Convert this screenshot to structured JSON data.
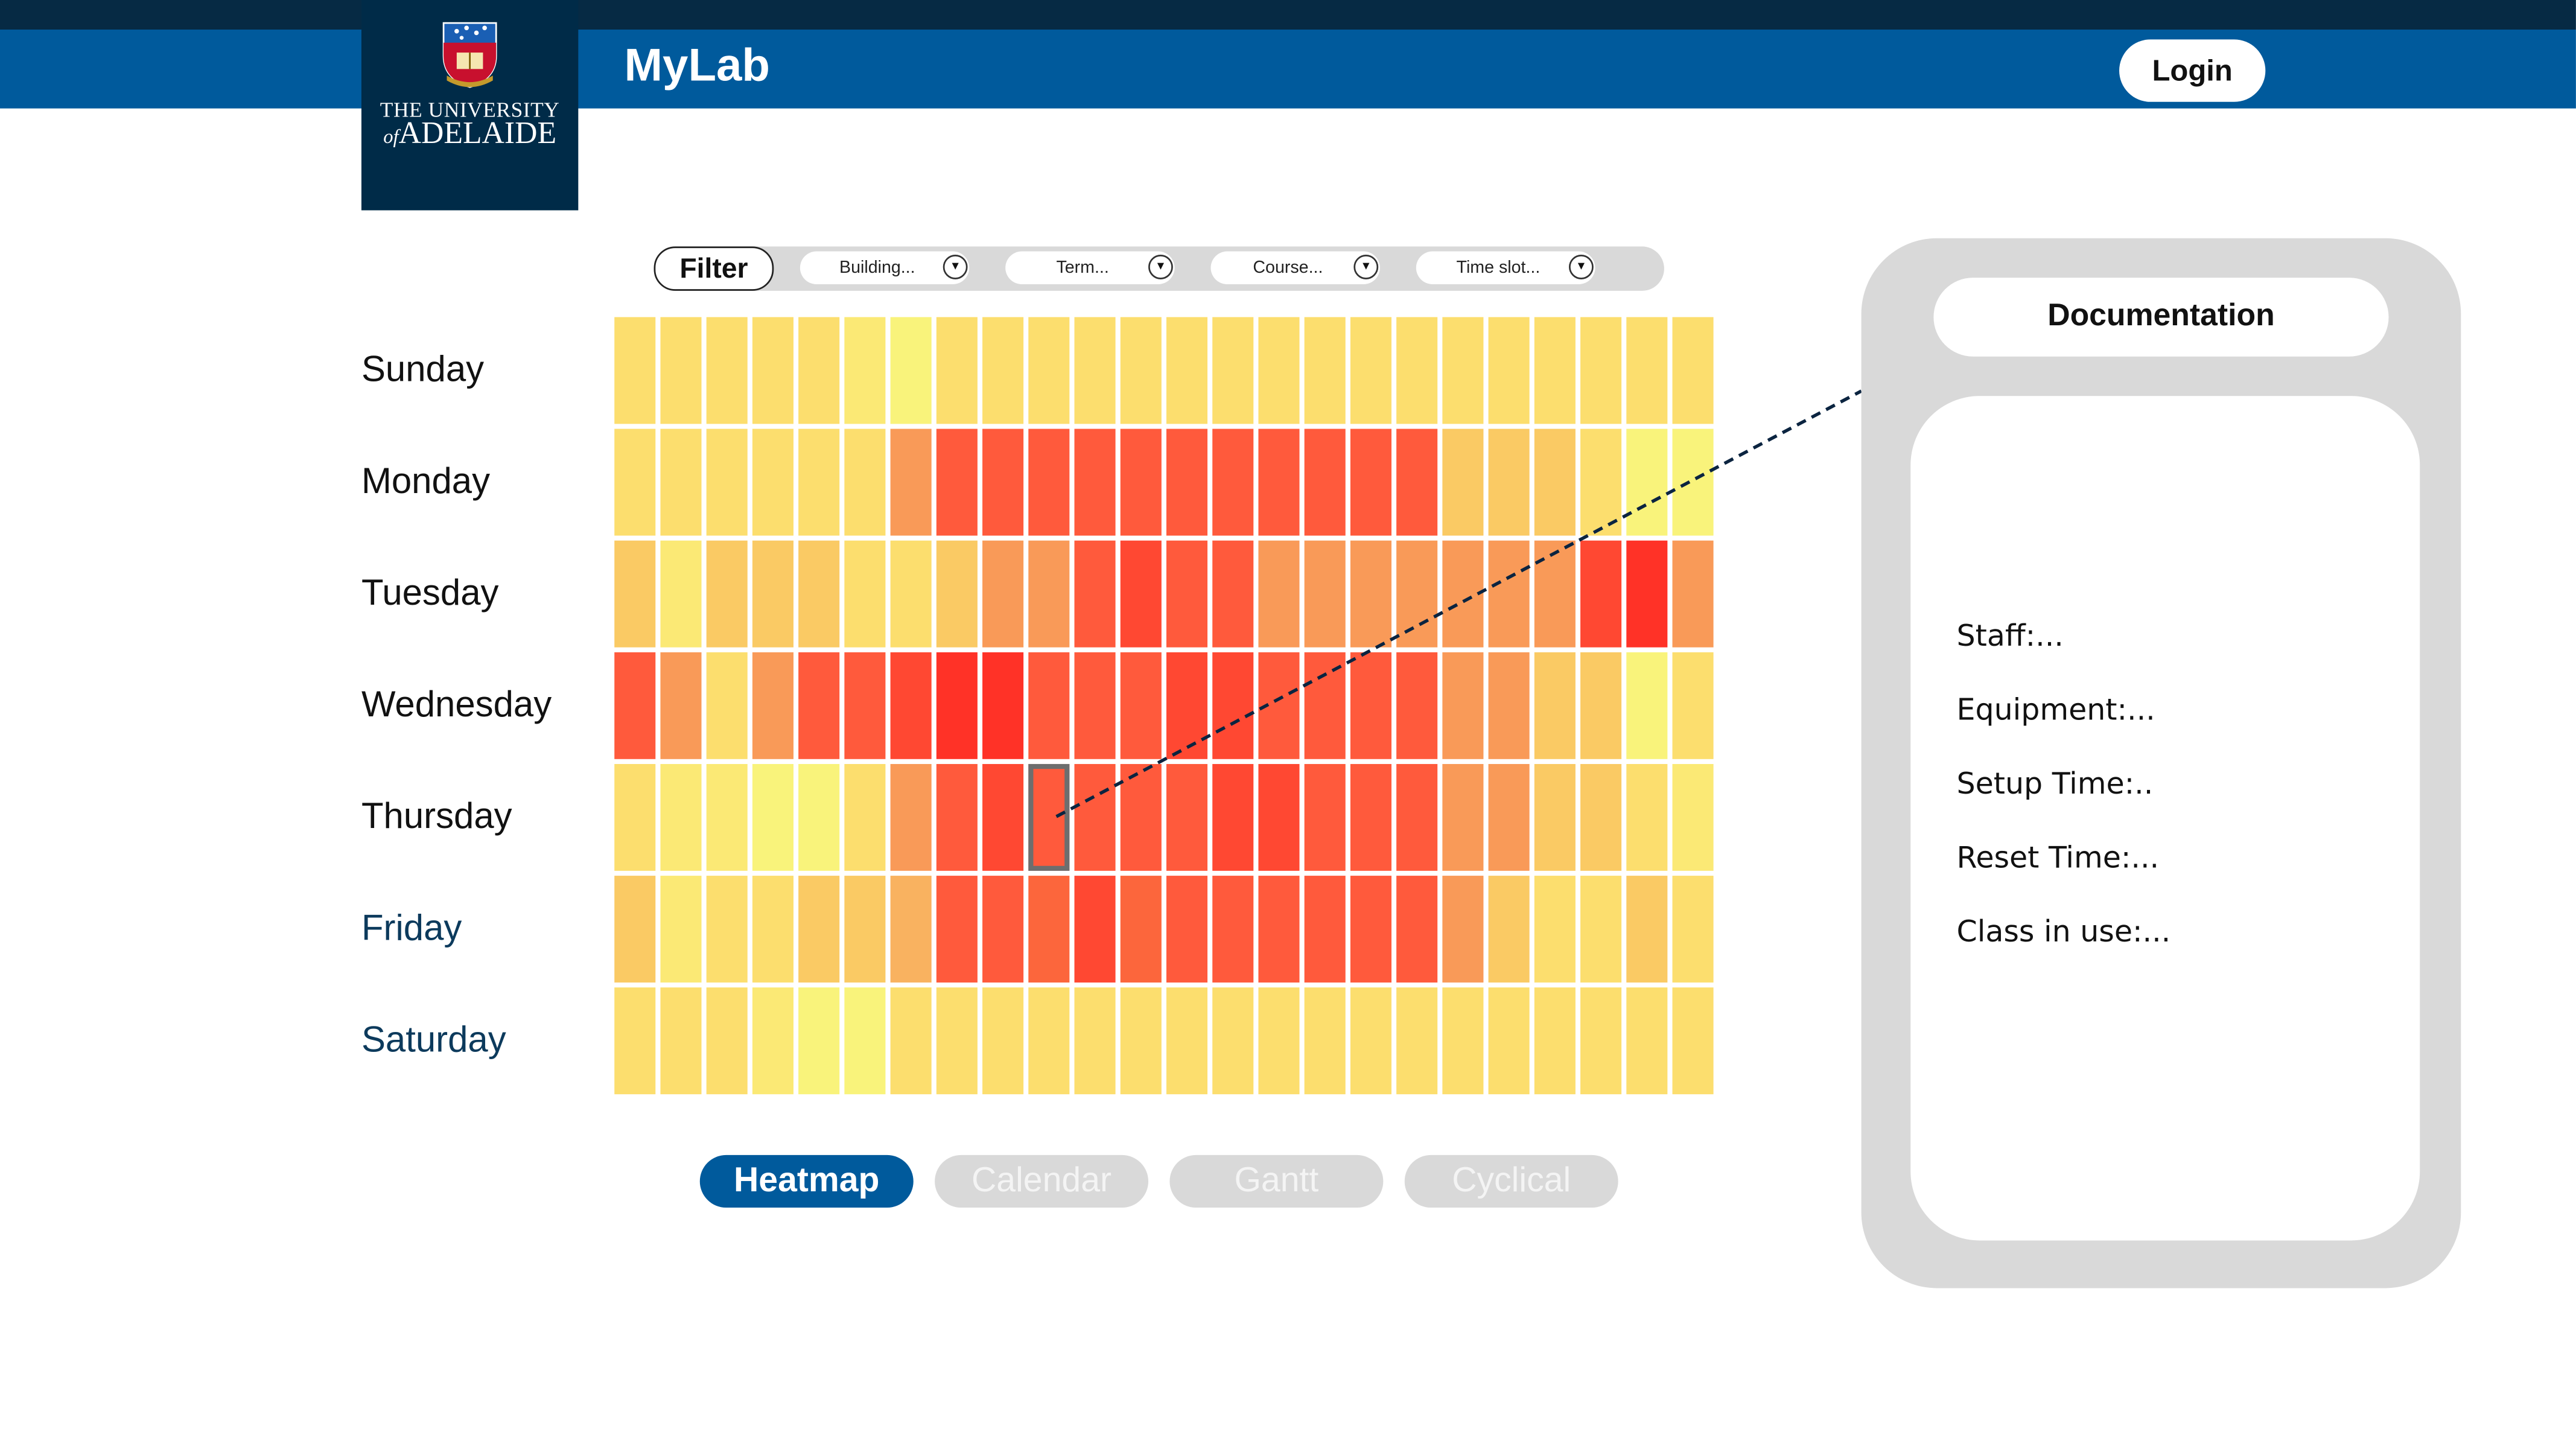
{
  "header": {
    "logo_line1": "THE UNIVERSITY",
    "logo_of": "of",
    "logo_line2": "ADELAIDE",
    "app_title": "MyLab",
    "login_label": "Login"
  },
  "filter": {
    "label": "Filter",
    "dropdowns": [
      {
        "label": "Building..."
      },
      {
        "label": "Term..."
      },
      {
        "label": "Course..."
      },
      {
        "label": "Time slot..."
      }
    ]
  },
  "days": [
    "Sunday",
    "Monday",
    "Tuesday",
    "Wednesday",
    "Thursday",
    "Friday",
    "Saturday"
  ],
  "chart_data": {
    "type": "heatmap",
    "rows": [
      "Sunday",
      "Monday",
      "Tuesday",
      "Wednesday",
      "Thursday",
      "Friday",
      "Saturday"
    ],
    "columns": 24,
    "scale": "0 (yellow, low usage) to 10 (red, high usage)",
    "values": [
      [
        2,
        2,
        2,
        2,
        2,
        1,
        0,
        2,
        2,
        2,
        2,
        2,
        2,
        2,
        2,
        2,
        2,
        2,
        2,
        2,
        2,
        2,
        2,
        2
      ],
      [
        2,
        2,
        2,
        2,
        2,
        2,
        5,
        8,
        8,
        8,
        8,
        8,
        8,
        8,
        8,
        8,
        8,
        8,
        3,
        3,
        3,
        2,
        0,
        0
      ],
      [
        3,
        1,
        3,
        3,
        3,
        2,
        2,
        3,
        5,
        5,
        8,
        9,
        8,
        8,
        5,
        5,
        5,
        5,
        5,
        5,
        5,
        9,
        10,
        5
      ],
      [
        8,
        5,
        2,
        5,
        8,
        8,
        9,
        10,
        10,
        8,
        8,
        8,
        9,
        9,
        8,
        8,
        8,
        8,
        5,
        5,
        3,
        3,
        0,
        2
      ],
      [
        2,
        1,
        1,
        0,
        0,
        2,
        5,
        8,
        9,
        8,
        8,
        8,
        8,
        9,
        9,
        8,
        8,
        8,
        5,
        5,
        3,
        3,
        2,
        1
      ],
      [
        3,
        1,
        2,
        2,
        3,
        3,
        4,
        8,
        8,
        7,
        9,
        7,
        8,
        8,
        8,
        8,
        8,
        8,
        5,
        3,
        2,
        2,
        3,
        2
      ],
      [
        2,
        2,
        2,
        1,
        0,
        0,
        2,
        2,
        2,
        2,
        2,
        2,
        2,
        2,
        2,
        2,
        2,
        2,
        2,
        2,
        2,
        2,
        2,
        2
      ]
    ],
    "selected_cell": {
      "day": "Thursday",
      "column": 9
    },
    "colors": {
      "low": "#f9f37b",
      "mid": "#f9a05b",
      "high": "#ff3227"
    }
  },
  "views": [
    {
      "label": "Heatmap",
      "active": true
    },
    {
      "label": "Calendar",
      "active": false
    },
    {
      "label": "Gantt",
      "active": false
    },
    {
      "label": "Cyclical",
      "active": false
    }
  ],
  "documentation": {
    "title": "Documentation",
    "fields": [
      "Staff:...",
      "Equipment:...",
      "Setup Time:..",
      "Reset Time:...",
      "Class in use:..."
    ]
  },
  "colors": {
    "navbar": "#005a9c",
    "topstrip": "#062a44",
    "logo_bg": "#002b48",
    "panel_gray": "#d9d9d9"
  }
}
